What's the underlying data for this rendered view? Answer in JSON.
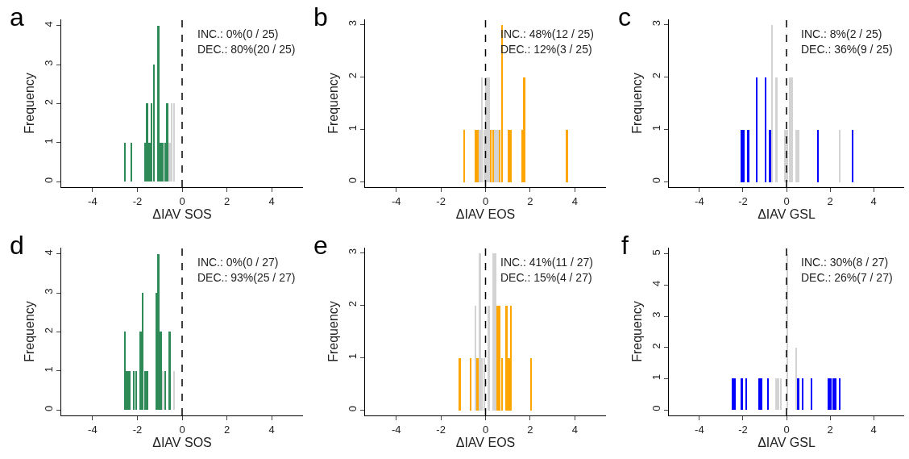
{
  "chart_data": [
    {
      "type": "bar",
      "title": "a",
      "xlabel": "ΔIAV SOS",
      "ylabel": "Frequency",
      "annotations": [
        "INC.: 0%(0 / 25)",
        "DEC.: 80%(20 / 25)"
      ],
      "x": [
        -2.55,
        -2.25,
        -1.65,
        -1.55,
        -1.45,
        -1.35,
        -1.25,
        -1.05,
        -0.95,
        -0.85,
        -0.75,
        -0.65,
        -0.55,
        -0.45,
        -0.35
      ],
      "values": [
        1,
        1,
        1,
        2,
        1,
        2,
        3,
        4,
        1,
        1,
        1,
        2,
        1,
        2,
        2
      ],
      "colors": [
        "#2e8b57",
        "#2e8b57",
        "#2e8b57",
        "#2e8b57",
        "#2e8b57",
        "#2e8b57",
        "#2e8b57",
        "#2e8b57",
        "#2e8b57",
        "#2e8b57",
        "#2e8b57",
        "#2e8b57",
        "#d3d3d3",
        "#d3d3d3",
        "#d3d3d3"
      ],
      "xlim": [
        -5.4,
        5.4
      ],
      "xticks": [
        -4,
        -2,
        0,
        2,
        4
      ],
      "ylim": [
        -0.14,
        4.16
      ],
      "yticks": [
        0,
        1,
        2,
        3,
        4
      ],
      "ref_lines": [
        {
          "axis": "x",
          "value": 0,
          "color": "#000000",
          "line_style": "dashed"
        }
      ]
    },
    {
      "type": "bar",
      "title": "b",
      "xlabel": "ΔIAV EOS",
      "ylabel": "Frequency",
      "annotations": [
        "INC.: 48%(12 / 25)",
        "DEC.: 12%(3 / 25)"
      ],
      "x": [
        -0.95,
        -0.45,
        -0.35,
        -0.25,
        -0.15,
        -0.05,
        0.05,
        0.15,
        0.25,
        0.35,
        0.45,
        0.55,
        0.65,
        0.75,
        1.05,
        1.15,
        1.65,
        1.75,
        3.65
      ],
      "values": [
        1,
        1,
        1,
        1,
        2,
        1,
        2,
        2,
        1,
        1,
        1,
        1,
        1,
        3,
        1,
        1,
        1,
        2,
        1
      ],
      "colors": [
        "#ffa500",
        "#ffa500",
        "#ffa500",
        "#d3d3d3",
        "#d3d3d3",
        "#d3d3d3",
        "#d3d3d3",
        "#d3d3d3",
        "#ffa500",
        "#ffa500",
        "#d3d3d3",
        "#d3d3d3",
        "#ffa500",
        "#ffa500",
        "#ffa500",
        "#ffa500",
        "#ffa500",
        "#ffa500",
        "#ffa500"
      ],
      "xlim": [
        -5.4,
        5.4
      ],
      "xticks": [
        -4,
        -2,
        0,
        2,
        4
      ],
      "ylim": [
        -0.1,
        3.1
      ],
      "yticks": [
        0,
        1,
        2,
        3
      ],
      "ref_lines": [
        {
          "axis": "x",
          "value": 0,
          "color": "#000000",
          "line_style": "dashed"
        }
      ]
    },
    {
      "type": "bar",
      "title": "c",
      "xlabel": "ΔIAV GSL",
      "ylabel": "Frequency",
      "annotations": [
        "INC.: 8%(2 / 25)",
        "DEC.: 36%(9 / 25)"
      ],
      "x": [
        -2.05,
        -1.95,
        -1.75,
        -1.35,
        -0.95,
        -0.75,
        -0.65,
        -0.45,
        -0.05,
        0.05,
        0.15,
        0.25,
        0.45,
        0.55,
        1.45,
        2.45,
        3.05
      ],
      "values": [
        1,
        1,
        1,
        2,
        2,
        1,
        3,
        2,
        1,
        1,
        2,
        2,
        1,
        1,
        1,
        1,
        1
      ],
      "colors": [
        "#0000ff",
        "#0000ff",
        "#0000ff",
        "#0000ff",
        "#0000ff",
        "#0000ff",
        "#d3d3d3",
        "#d3d3d3",
        "#d3d3d3",
        "#d3d3d3",
        "#d3d3d3",
        "#d3d3d3",
        "#d3d3d3",
        "#d3d3d3",
        "#0000ff",
        "#d3d3d3",
        "#0000ff"
      ],
      "xlim": [
        -5.4,
        5.4
      ],
      "xticks": [
        -4,
        -2,
        0,
        2,
        4
      ],
      "ylim": [
        -0.1,
        3.1
      ],
      "yticks": [
        0,
        1,
        2,
        3
      ],
      "ref_lines": [
        {
          "axis": "x",
          "value": 0,
          "color": "#000000",
          "line_style": "dashed"
        }
      ]
    },
    {
      "type": "bar",
      "title": "d",
      "xlabel": "ΔIAV SOS",
      "ylabel": "Frequency",
      "annotations": [
        "INC.: 0%(0 / 27)",
        "DEC.: 93%(25 / 27)"
      ],
      "x": [
        -2.55,
        -2.45,
        -2.35,
        -2.15,
        -2.05,
        -1.85,
        -1.75,
        -1.65,
        -1.55,
        -1.15,
        -1.05,
        -0.95,
        -0.85,
        -0.75,
        -0.55,
        -0.35
      ],
      "values": [
        2,
        1,
        1,
        1,
        1,
        2,
        3,
        1,
        1,
        3,
        4,
        2,
        1,
        1,
        2,
        1
      ],
      "colors": [
        "#2e8b57",
        "#2e8b57",
        "#2e8b57",
        "#2e8b57",
        "#2e8b57",
        "#2e8b57",
        "#2e8b57",
        "#2e8b57",
        "#2e8b57",
        "#2e8b57",
        "#2e8b57",
        "#2e8b57",
        "#d3d3d3",
        "#2e8b57",
        "#2e8b57",
        "#d3d3d3"
      ],
      "xlim": [
        -5.4,
        5.4
      ],
      "xticks": [
        -4,
        -2,
        0,
        2,
        4
      ],
      "ylim": [
        -0.14,
        4.16
      ],
      "yticks": [
        0,
        1,
        2,
        3,
        4
      ],
      "ref_lines": [
        {
          "axis": "x",
          "value": 0,
          "color": "#000000",
          "line_style": "dashed"
        }
      ]
    },
    {
      "type": "bar",
      "title": "e",
      "xlabel": "ΔIAV EOS",
      "ylabel": "Frequency",
      "annotations": [
        "INC.: 41%(11 / 27)",
        "DEC.: 15%(4 / 27)"
      ],
      "x": [
        -1.15,
        -0.65,
        -0.45,
        -0.35,
        -0.25,
        -0.15,
        -0.05,
        0.15,
        0.35,
        0.45,
        0.55,
        0.65,
        0.75,
        0.95,
        1.05,
        1.15,
        2.05
      ],
      "values": [
        1,
        1,
        2,
        1,
        3,
        1,
        1,
        2,
        3,
        3,
        2,
        2,
        1,
        2,
        1,
        2,
        1
      ],
      "colors": [
        "#ffa500",
        "#ffa500",
        "#d3d3d3",
        "#ffa500",
        "#d3d3d3",
        "#d3d3d3",
        "#d3d3d3",
        "#d3d3d3",
        "#d3d3d3",
        "#d3d3d3",
        "#ffa500",
        "#ffa500",
        "#ffa500",
        "#ffa500",
        "#ffa500",
        "#ffa500",
        "#ffa500"
      ],
      "xlim": [
        -5.4,
        5.4
      ],
      "xticks": [
        -4,
        -2,
        0,
        2,
        4
      ],
      "ylim": [
        -0.1,
        3.1
      ],
      "yticks": [
        0,
        1,
        2,
        3
      ],
      "ref_lines": [
        {
          "axis": "x",
          "value": 0,
          "color": "#000000",
          "line_style": "dashed"
        }
      ]
    },
    {
      "type": "bar",
      "title": "f",
      "xlabel": "ΔIAV GSL",
      "ylabel": "Frequency",
      "annotations": [
        "INC.: 30%(8 / 27)",
        "DEC.: 26%(7 / 27)"
      ],
      "x": [
        -2.45,
        -2.35,
        -2.05,
        -1.85,
        -1.25,
        -1.15,
        -0.85,
        -0.45,
        -0.35,
        -0.25,
        0.05,
        0.45,
        0.55,
        0.75,
        1.15,
        1.95,
        2.05,
        2.15,
        2.25,
        2.45
      ],
      "values": [
        1,
        1,
        1,
        1,
        1,
        1,
        1,
        1,
        1,
        1,
        5,
        2,
        1,
        1,
        1,
        1,
        1,
        1,
        1,
        1
      ],
      "colors": [
        "#0000ff",
        "#0000ff",
        "#0000ff",
        "#0000ff",
        "#0000ff",
        "#0000ff",
        "#0000ff",
        "#d3d3d3",
        "#d3d3d3",
        "#d3d3d3",
        "#d3d3d3",
        "#d3d3d3",
        "#0000ff",
        "#0000ff",
        "#0000ff",
        "#0000ff",
        "#0000ff",
        "#0000ff",
        "#0000ff",
        "#0000ff"
      ],
      "xlim": [
        -5.4,
        5.4
      ],
      "xticks": [
        -4,
        -2,
        0,
        2,
        4
      ],
      "ylim": [
        -0.18,
        5.2
      ],
      "yticks": [
        0,
        1,
        2,
        3,
        4,
        5
      ],
      "ref_lines": [
        {
          "axis": "x",
          "value": 0,
          "color": "#000000",
          "line_style": "dashed"
        }
      ]
    }
  ]
}
